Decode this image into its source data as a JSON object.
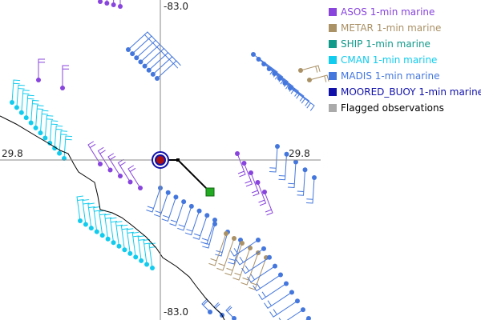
{
  "map": {
    "axis_labels": {
      "lon_top": "-83.0",
      "lon_bottom": "-83.0",
      "lat_left": "29.8",
      "lat_right": "29.8"
    },
    "legend": [
      {
        "label": "ASOS 1-min marine",
        "color": "#8844dd",
        "text_color": "#8844dd"
      },
      {
        "label": "METAR 1-min marine",
        "color": "#aa9166",
        "text_color": "#aa9166"
      },
      {
        "label": "SHIP 1-min marine",
        "color": "#11998a",
        "text_color": "#11998a"
      },
      {
        "label": "CMAN 1-min marine",
        "color": "#11ccee",
        "text_color": "#11ccee"
      },
      {
        "label": "MADIS 1-min marine",
        "color": "#4477dd",
        "text_color": "#4477dd"
      },
      {
        "label": "MOORED_BUOY 1-min marine",
        "color": "#1111aa",
        "text_color": "#1111aa"
      },
      {
        "label": "Flagged observations",
        "color": "#aaaaaa",
        "text_color": "#000000"
      }
    ]
  }
}
